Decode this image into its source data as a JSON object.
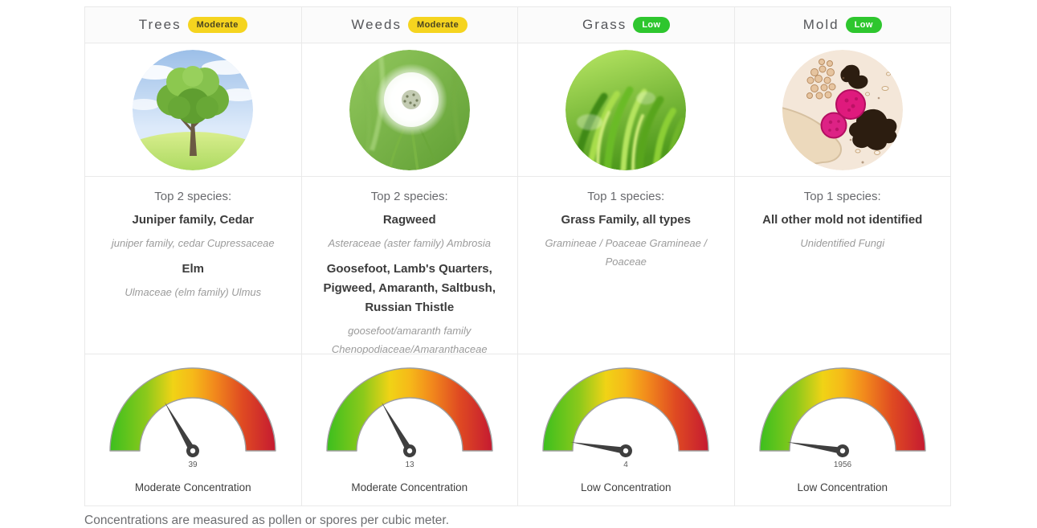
{
  "table": {
    "columns": [
      {
        "title": "Trees",
        "level": "Moderate",
        "badge_bg": "#f5d41f",
        "badge_fg": "#4a4420",
        "image": "tree-photo",
        "species_heading": "Top 2 species:",
        "species": [
          {
            "name": "Juniper family, Cedar",
            "latin": "juniper family, cedar Cupressaceae"
          },
          {
            "name": "Elm",
            "latin": "Ulmaceae (elm family) Ulmus"
          }
        ],
        "gauge": {
          "value": "39",
          "angle_deg": 60,
          "label": "Moderate Concentration"
        }
      },
      {
        "title": "Weeds",
        "level": "Moderate",
        "badge_bg": "#f5d41f",
        "badge_fg": "#4a4420",
        "image": "dandelion-photo",
        "species_heading": "Top 2 species:",
        "species": [
          {
            "name": "Ragweed",
            "latin": "Asteraceae (aster family) Ambrosia"
          },
          {
            "name": "Goosefoot, Lamb's Quarters, Pigweed, Amaranth, Saltbush, Russian Thistle",
            "latin": "goosefoot/amaranth family Chenopodiaceae/Amaranthaceae"
          }
        ],
        "gauge": {
          "value": "13",
          "angle_deg": 60,
          "label": "Moderate Concentration"
        }
      },
      {
        "title": "Grass",
        "level": "Low",
        "badge_bg": "#2ec62e",
        "badge_fg": "#ffffff",
        "image": "grass-photo",
        "species_heading": "Top 1 species:",
        "species": [
          {
            "name": "Grass Family, all types",
            "latin": "Gramineae / Poaceae Gramineae / Poaceae"
          }
        ],
        "gauge": {
          "value": "4",
          "angle_deg": 9,
          "label": "Low Concentration"
        }
      },
      {
        "title": "Mold",
        "level": "Low",
        "badge_bg": "#2ec62e",
        "badge_fg": "#ffffff",
        "image": "mold-microscopy-photo",
        "species_heading": "Top 1 species:",
        "species": [
          {
            "name": "All other mold not identified",
            "latin": "Unidentified Fungi"
          }
        ],
        "gauge": {
          "value": "1956",
          "angle_deg": 9,
          "label": "Low Concentration"
        }
      }
    ],
    "footer_note": "Concentrations are measured as pollen or spores per cubic meter."
  },
  "chart_data": {
    "type": "gauge",
    "unit": "pollen or spores per cubic meter",
    "scale": "semicircular green-yellow-orange-red, low at left / high at right",
    "gauges": [
      {
        "category": "Trees",
        "level": "Moderate",
        "value": 39,
        "needle_angle_deg_from_left": 60,
        "label": "Moderate Concentration"
      },
      {
        "category": "Weeds",
        "level": "Moderate",
        "value": 13,
        "needle_angle_deg_from_left": 60,
        "label": "Moderate Concentration"
      },
      {
        "category": "Grass",
        "level": "Low",
        "value": 4,
        "needle_angle_deg_from_left": 9,
        "label": "Low Concentration"
      },
      {
        "category": "Mold",
        "level": "Low",
        "value": 1956,
        "needle_angle_deg_from_left": 9,
        "label": "Low Concentration"
      }
    ],
    "status_colors": {
      "moderate": "#f5d41f",
      "low": "#2ec62e"
    },
    "gauge_gradient": [
      "#3cbf1e",
      "#8cc91b",
      "#f0d316",
      "#f6b919",
      "#f28a1c",
      "#df4a22",
      "#c51a31"
    ],
    "needle_color": "#3f3f3f"
  }
}
